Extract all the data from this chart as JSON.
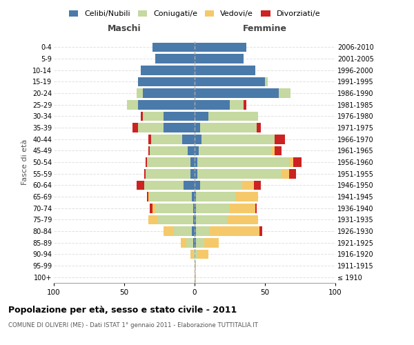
{
  "age_groups": [
    "100+",
    "95-99",
    "90-94",
    "85-89",
    "80-84",
    "75-79",
    "70-74",
    "65-69",
    "60-64",
    "55-59",
    "50-54",
    "45-49",
    "40-44",
    "35-39",
    "30-34",
    "25-29",
    "20-24",
    "15-19",
    "10-14",
    "5-9",
    "0-4"
  ],
  "birth_years": [
    "≤ 1910",
    "1911-1915",
    "1916-1920",
    "1921-1925",
    "1926-1930",
    "1931-1935",
    "1936-1940",
    "1941-1945",
    "1946-1950",
    "1951-1955",
    "1956-1960",
    "1961-1965",
    "1966-1970",
    "1971-1975",
    "1976-1980",
    "1981-1985",
    "1986-1990",
    "1991-1995",
    "1996-2000",
    "2001-2005",
    "2006-2010"
  ],
  "maschi": {
    "celibi": [
      0,
      0,
      0,
      1,
      2,
      1,
      1,
      2,
      8,
      3,
      3,
      5,
      9,
      22,
      22,
      40,
      37,
      40,
      38,
      28,
      30
    ],
    "coniugati": [
      0,
      0,
      1,
      5,
      13,
      25,
      27,
      30,
      28,
      32,
      31,
      27,
      22,
      18,
      15,
      8,
      4,
      0,
      0,
      0,
      0
    ],
    "vedovi": [
      0,
      0,
      2,
      4,
      7,
      7,
      2,
      1,
      0,
      0,
      0,
      0,
      0,
      0,
      0,
      0,
      0,
      0,
      0,
      0,
      0
    ],
    "divorziati": [
      0,
      0,
      0,
      0,
      0,
      0,
      2,
      1,
      5,
      1,
      1,
      1,
      2,
      4,
      1,
      0,
      0,
      0,
      0,
      0,
      0
    ]
  },
  "femmine": {
    "nubili": [
      0,
      0,
      0,
      1,
      1,
      1,
      1,
      1,
      4,
      2,
      2,
      3,
      5,
      4,
      10,
      25,
      60,
      50,
      43,
      35,
      37
    ],
    "coniugate": [
      0,
      0,
      2,
      6,
      10,
      22,
      24,
      28,
      30,
      60,
      65,
      52,
      52,
      40,
      35,
      10,
      8,
      2,
      0,
      0,
      0
    ],
    "vedove": [
      1,
      1,
      8,
      10,
      35,
      22,
      18,
      16,
      8,
      5,
      3,
      2,
      0,
      0,
      0,
      0,
      0,
      0,
      0,
      0,
      0
    ],
    "divorziate": [
      0,
      0,
      0,
      0,
      2,
      0,
      1,
      0,
      5,
      5,
      6,
      5,
      7,
      3,
      0,
      2,
      0,
      0,
      0,
      0,
      0
    ]
  },
  "colors": {
    "celibi": "#4a7aaa",
    "coniugati": "#c5d9a0",
    "vedovi": "#f5c96a",
    "divorziati": "#cc2222"
  },
  "xlim": 100,
  "title": "Popolazione per età, sesso e stato civile - 2011",
  "subtitle": "COMUNE DI OLIVERI (ME) - Dati ISTAT 1° gennaio 2011 - Elaborazione TUTTITALIA.IT",
  "ylabel_left": "Fasce di età",
  "xlabel_left": "Maschi",
  "xlabel_right": "Femmine"
}
